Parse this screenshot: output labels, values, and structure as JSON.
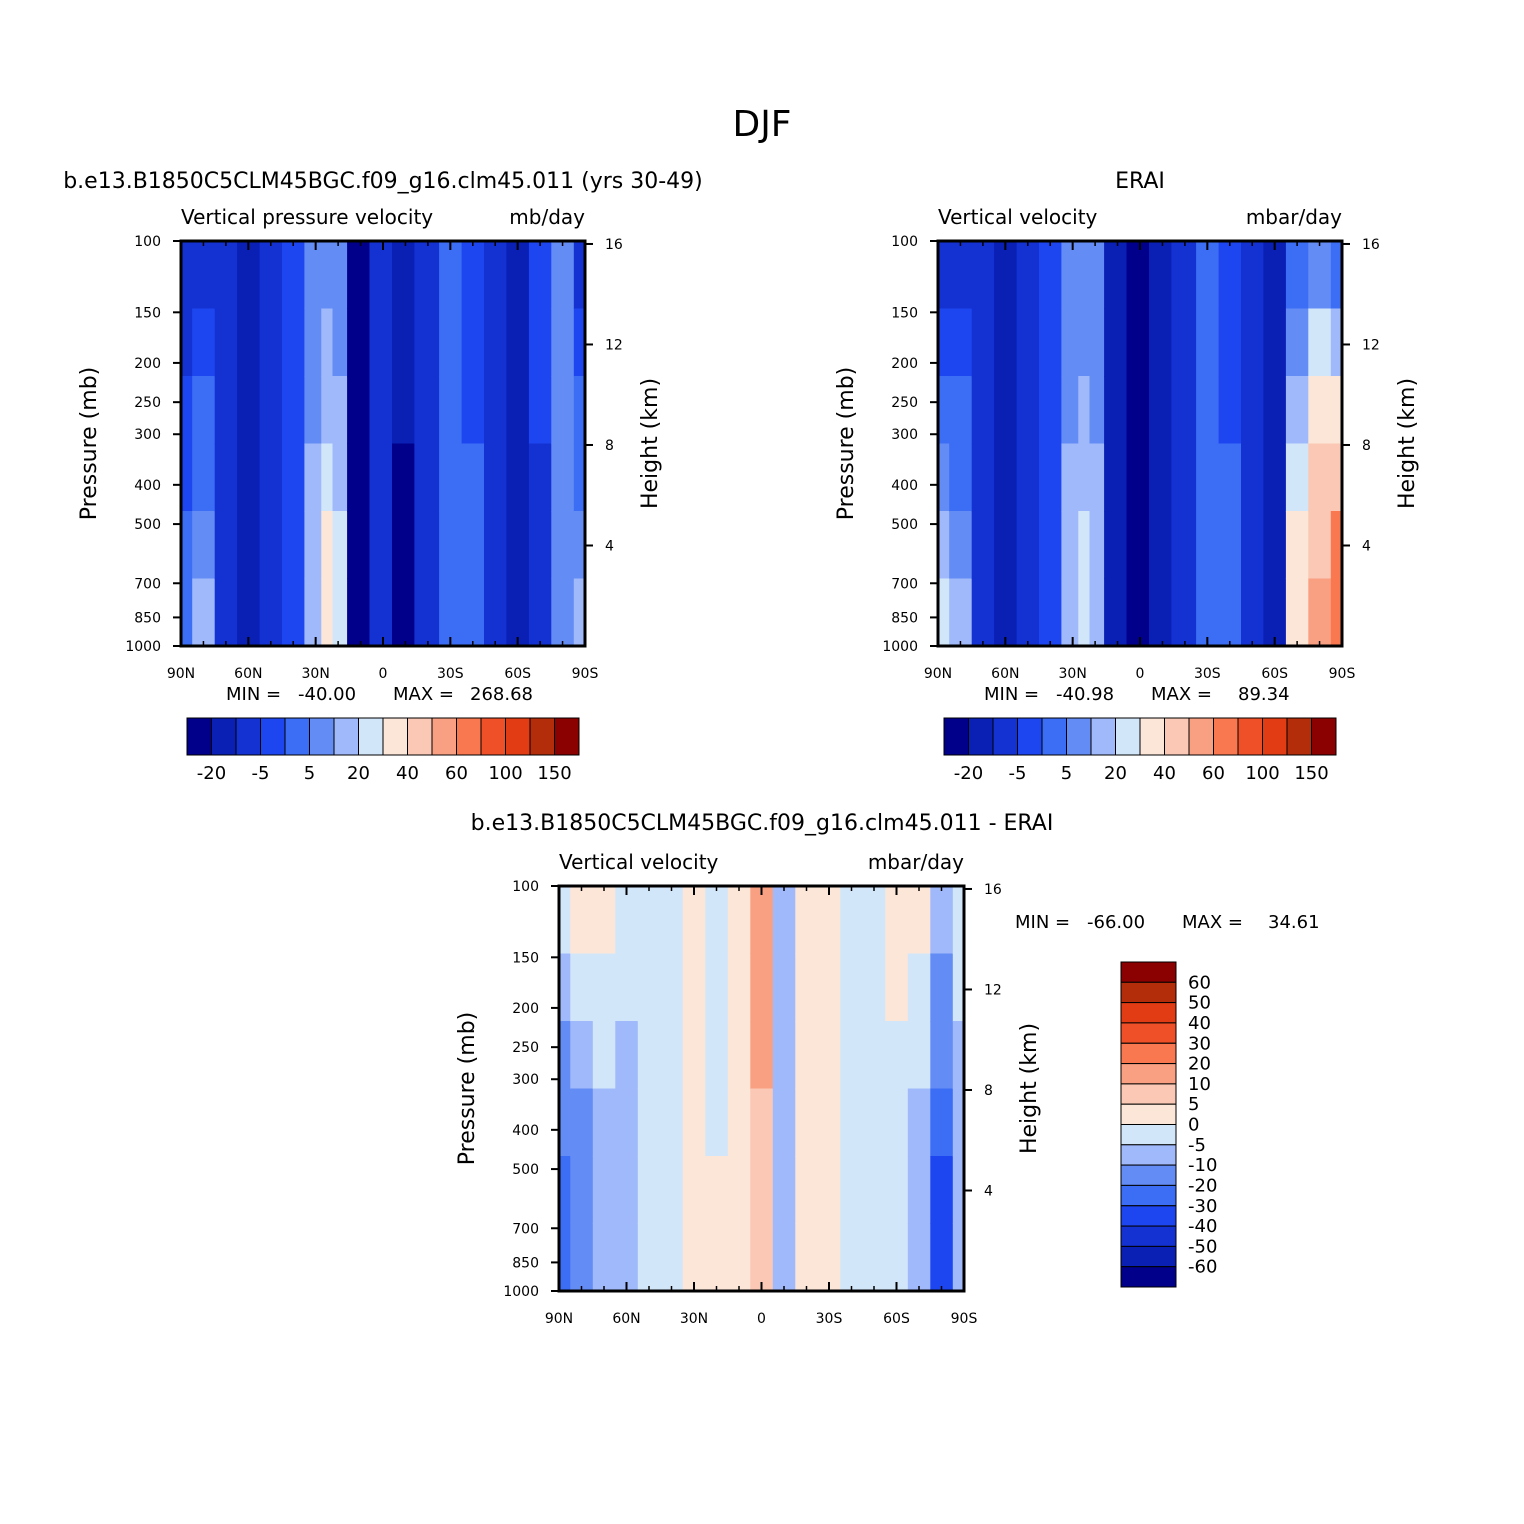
{
  "figure": {
    "title": "DJF"
  },
  "palette": {
    "model_levels": [
      "#00008b",
      "#0a1fb4",
      "#1432d2",
      "#1e46f0",
      "#3c6ef5",
      "#648cf5",
      "#a0b9fa",
      "#d2e6fa",
      "#fce6d7",
      "#fac8b4",
      "#faa082",
      "#fa7850",
      "#f05028",
      "#e13c14",
      "#b42d0a",
      "#8b0000"
    ],
    "diff_levels": [
      "#00008b",
      "#0a1fb4",
      "#1432d2",
      "#1e46f0",
      "#3c6ef5",
      "#648cf5",
      "#a0b9fa",
      "#d2e6fa",
      "#fce6d7",
      "#fac8b4",
      "#faa082",
      "#fa7850",
      "#f05028",
      "#e13c14",
      "#b42d0a",
      "#8b0000"
    ]
  },
  "chart_data": [
    {
      "type": "heatmap",
      "id": "model",
      "title": "b.e13.B1850C5CLM45BGC.f09_g16.clm45.011 (yrs 30-49)",
      "left_header": "Vertical pressure velocity",
      "right_header": "mb/day",
      "xlabel": "",
      "ylabel": "Pressure (mb)",
      "y2label": "Height (km)",
      "x_ticks": [
        "90N",
        "60N",
        "30N",
        "0",
        "30S",
        "60S",
        "90S"
      ],
      "x_range": [
        90,
        -90
      ],
      "y_ticks": [
        100,
        150,
        200,
        250,
        300,
        400,
        500,
        700,
        850,
        1000
      ],
      "y_range": [
        100,
        1000
      ],
      "y_scale": "log",
      "y2_ticks": [
        16,
        12,
        8,
        4
      ],
      "stats": {
        "min_label": "MIN =",
        "min": "-40.00",
        "max_label": "MAX =",
        "max": "268.68"
      },
      "colorbar": {
        "orientation": "horizontal",
        "labels": [
          "-20",
          "-5",
          "5",
          "20",
          "40",
          "60",
          "100",
          "150"
        ]
      },
      "columns": [
        {
          "lat": 90,
          "top": -20,
          "bottom": -5
        },
        {
          "lat": 80,
          "top": -20,
          "bottom": 5
        },
        {
          "lat": 70,
          "top": -20,
          "bottom": -20
        },
        {
          "lat": 60,
          "top": -20,
          "bottom": -30
        },
        {
          "lat": 50,
          "top": -20,
          "bottom": -20
        },
        {
          "lat": 40,
          "top": -15,
          "bottom": -10
        },
        {
          "lat": 30,
          "top": -5,
          "bottom": 5
        },
        {
          "lat": 25,
          "top": -5,
          "bottom": 15
        },
        {
          "lat": 20,
          "top": -5,
          "bottom": 10
        },
        {
          "lat": 12,
          "top": -30,
          "bottom": -35
        },
        {
          "lat": 0,
          "top": -20,
          "bottom": -20
        },
        {
          "lat": -8,
          "top": -20,
          "bottom": -40
        },
        {
          "lat": -20,
          "top": -20,
          "bottom": -20
        },
        {
          "lat": -30,
          "top": -10,
          "bottom": -5
        },
        {
          "lat": -40,
          "top": -15,
          "bottom": -5
        },
        {
          "lat": -50,
          "top": -20,
          "bottom": -20
        },
        {
          "lat": -60,
          "top": -20,
          "bottom": -30
        },
        {
          "lat": -70,
          "top": -10,
          "bottom": -20
        },
        {
          "lat": -80,
          "top": -5,
          "bottom": -5
        },
        {
          "lat": -90,
          "top": -20,
          "bottom": 5
        }
      ]
    },
    {
      "type": "heatmap",
      "id": "obs",
      "title": "ERAI",
      "left_header": "Vertical velocity",
      "right_header": "mbar/day",
      "xlabel": "",
      "ylabel": "Pressure (mb)",
      "y2label": "Height (km)",
      "x_ticks": [
        "90N",
        "60N",
        "30N",
        "0",
        "30S",
        "60S",
        "90S"
      ],
      "x_range": [
        90,
        -90
      ],
      "y_ticks": [
        100,
        150,
        200,
        250,
        300,
        400,
        500,
        700,
        850,
        1000
      ],
      "y_range": [
        100,
        1000
      ],
      "y_scale": "log",
      "y2_ticks": [
        16,
        12,
        8,
        4
      ],
      "stats": {
        "min_label": "MIN =",
        "min": "-40.98",
        "max_label": "MAX =",
        "max": "89.34"
      },
      "colorbar": {
        "orientation": "horizontal",
        "labels": [
          "-20",
          "-5",
          "5",
          "20",
          "40",
          "60",
          "100",
          "150"
        ]
      },
      "columns": [
        {
          "lat": 90,
          "top": -20,
          "bottom": 10
        },
        {
          "lat": 80,
          "top": -20,
          "bottom": 5
        },
        {
          "lat": 70,
          "top": -20,
          "bottom": -15
        },
        {
          "lat": 60,
          "top": -20,
          "bottom": -30
        },
        {
          "lat": 50,
          "top": -20,
          "bottom": -20
        },
        {
          "lat": 40,
          "top": -15,
          "bottom": -10
        },
        {
          "lat": 30,
          "top": -5,
          "bottom": 5
        },
        {
          "lat": 25,
          "top": -5,
          "bottom": 10
        },
        {
          "lat": 20,
          "top": -5,
          "bottom": 5
        },
        {
          "lat": 12,
          "top": -30,
          "bottom": -30
        },
        {
          "lat": 0,
          "top": -30,
          "bottom": -40
        },
        {
          "lat": -8,
          "top": -30,
          "bottom": -30
        },
        {
          "lat": -20,
          "top": -20,
          "bottom": -20
        },
        {
          "lat": -30,
          "top": -10,
          "bottom": -5
        },
        {
          "lat": -40,
          "top": -15,
          "bottom": -5
        },
        {
          "lat": -50,
          "top": -20,
          "bottom": -20
        },
        {
          "lat": -60,
          "top": -20,
          "bottom": -30
        },
        {
          "lat": -70,
          "top": -10,
          "bottom": 20
        },
        {
          "lat": -80,
          "top": -5,
          "bottom": 40
        },
        {
          "lat": -90,
          "top": -15,
          "bottom": 60
        }
      ]
    },
    {
      "type": "heatmap",
      "id": "diff",
      "title": "b.e13.B1850C5CLM45BGC.f09_g16.clm45.011 - ERAI",
      "left_header": "Vertical velocity",
      "right_header": "mbar/day",
      "xlabel": "",
      "ylabel": "Pressure (mb)",
      "y2label": "Height (km)",
      "x_ticks": [
        "90N",
        "60N",
        "30N",
        "0",
        "30S",
        "60S",
        "90S"
      ],
      "x_range": [
        90,
        -90
      ],
      "y_ticks": [
        100,
        150,
        200,
        250,
        300,
        400,
        500,
        700,
        850,
        1000
      ],
      "y_range": [
        100,
        1000
      ],
      "y_scale": "log",
      "y2_ticks": [
        16,
        12,
        8,
        4
      ],
      "stats": {
        "min_label": "MIN =",
        "min": "-66.00",
        "max_label": "MAX =",
        "max": "34.61"
      },
      "colorbar": {
        "orientation": "vertical",
        "labels": [
          "60",
          "50",
          "40",
          "30",
          "20",
          "10",
          "5",
          "0",
          "-5",
          "-10",
          "-20",
          "-30",
          "-40",
          "-50",
          "-60"
        ]
      },
      "columns": [
        {
          "lat": 90,
          "top": 2,
          "bottom": -30
        },
        {
          "lat": 80,
          "top": 2,
          "bottom": -20
        },
        {
          "lat": 70,
          "top": 2,
          "bottom": -10
        },
        {
          "lat": 60,
          "top": -2,
          "bottom": -10
        },
        {
          "lat": 50,
          "top": -2,
          "bottom": -5
        },
        {
          "lat": 40,
          "top": -2,
          "bottom": -2
        },
        {
          "lat": 30,
          "top": 2,
          "bottom": 2
        },
        {
          "lat": 20,
          "top": -5,
          "bottom": 2
        },
        {
          "lat": 10,
          "top": 2,
          "bottom": 2
        },
        {
          "lat": 0,
          "top": 15,
          "bottom": 5
        },
        {
          "lat": -10,
          "top": -8,
          "bottom": -5
        },
        {
          "lat": -20,
          "top": 2,
          "bottom": 2
        },
        {
          "lat": -30,
          "top": 2,
          "bottom": 2
        },
        {
          "lat": -40,
          "top": -2,
          "bottom": -2
        },
        {
          "lat": -50,
          "top": -2,
          "bottom": -2
        },
        {
          "lat": -60,
          "top": 2,
          "bottom": -5
        },
        {
          "lat": -70,
          "top": 2,
          "bottom": -10
        },
        {
          "lat": -80,
          "top": -2,
          "bottom": -40
        },
        {
          "lat": -90,
          "top": -2,
          "bottom": -10
        }
      ]
    }
  ]
}
